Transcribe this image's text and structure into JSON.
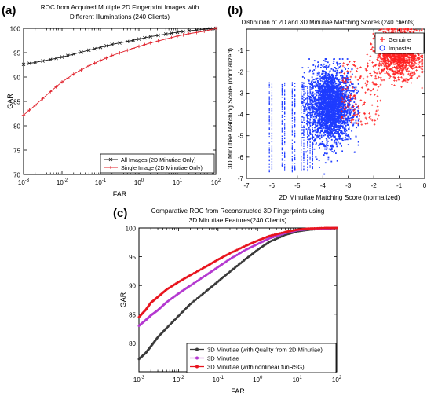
{
  "chart_data": [
    {
      "panel_label": "(a)",
      "type": "line",
      "title": [
        "ROC from Acquired Multiple 2D Fingerprint Images with",
        "Different Illuminations (240 Clients)"
      ],
      "xlabel": "FAR",
      "ylabel": "GAR",
      "xscale": "log",
      "xlim": [
        0.001,
        100
      ],
      "ylim": [
        70,
        100
      ],
      "xticks": [
        "10^-3",
        "10^-2",
        "10^-1",
        "10^0",
        "10^1",
        "10^2"
      ],
      "yticks": [
        "70",
        "75",
        "80",
        "85",
        "90",
        "95",
        "100"
      ],
      "grid": false,
      "legend_position": "bottom-right",
      "series": [
        {
          "name": "All Images (2D Minutiae Only)",
          "color": "#1a1a1a",
          "marker": "x",
          "x": [
            0.001,
            0.002,
            0.005,
            0.01,
            0.02,
            0.05,
            0.1,
            0.2,
            0.5,
            1,
            2,
            5,
            10,
            20,
            50,
            100
          ],
          "y": [
            92.6,
            93.0,
            93.6,
            94.1,
            94.7,
            95.5,
            96.1,
            96.7,
            97.3,
            97.8,
            98.3,
            98.8,
            99.2,
            99.5,
            99.8,
            100
          ]
        },
        {
          "name": "Single Image (2D Minutiae Only)",
          "color": "#e0202a",
          "marker": "+",
          "x": [
            0.001,
            0.002,
            0.005,
            0.01,
            0.02,
            0.05,
            0.1,
            0.2,
            0.5,
            1,
            2,
            5,
            10,
            20,
            50,
            100
          ],
          "y": [
            82.2,
            84.2,
            87.0,
            89.0,
            90.6,
            92.3,
            93.4,
            94.4,
            95.5,
            96.3,
            97.0,
            97.8,
            98.4,
            98.9,
            99.4,
            100
          ]
        }
      ]
    },
    {
      "panel_label": "(b)",
      "type": "scatter",
      "title": [
        "Distibution of 2D and 3D Minutiae Matching Scores (240 clients)"
      ],
      "xlabel": "2D Minutiae Matching Score (normalized)",
      "ylabel": "3D Minutiae Matching Score (normalized)",
      "xlim": [
        -7,
        0
      ],
      "ylim": [
        -7,
        0
      ],
      "xticks": [
        "-7",
        "-6",
        "-5",
        "-4",
        "-3",
        "-2",
        "-1",
        "0"
      ],
      "yticks": [
        "-7",
        "-6",
        "-5",
        "-4",
        "-3",
        "-2",
        "-1"
      ],
      "legend_position": "top-right",
      "series": [
        {
          "name": "Genuine",
          "color": "#ff2020",
          "marker": "+",
          "x_center": -1.0,
          "y_center": -1.1,
          "x_range": [
            -3.3,
            -0.1
          ],
          "y_range": [
            -4.6,
            0.0
          ]
        },
        {
          "name": "Imposter",
          "color": "#1e3cff",
          "marker": "o",
          "x_center": -3.7,
          "y_center": -3.6,
          "x_range": [
            -6.1,
            -2.6
          ],
          "y_range": [
            -6.8,
            -1.4
          ]
        }
      ]
    },
    {
      "panel_label": "(c)",
      "type": "line",
      "title": [
        "Comparative ROC from Reconstructed 3D Fingerprints using",
        "3D Minutiae Features(240 Clients)"
      ],
      "xlabel": "FAR",
      "ylabel": "GAR",
      "xscale": "log",
      "xlim": [
        0.001,
        100
      ],
      "ylim": [
        75,
        100
      ],
      "xticks": [
        "10^-3",
        "10^-2",
        "10^-1",
        "10^0",
        "10^1",
        "10^2"
      ],
      "yticks": [
        "80",
        "85",
        "90",
        "95",
        "100"
      ],
      "grid": false,
      "legend_position": "bottom-right",
      "series": [
        {
          "name": "3D Minutiae (with Quality from 2D Minutiae)",
          "color": "#3a3a3a",
          "marker": "dot",
          "x": [
            0.001,
            0.0015,
            0.002,
            0.003,
            0.005,
            0.01,
            0.02,
            0.05,
            0.1,
            0.2,
            0.5,
            1,
            2,
            5,
            10,
            20,
            50,
            100
          ],
          "y": [
            77.2,
            78.3,
            79.4,
            81.0,
            82.6,
            84.7,
            86.8,
            89.0,
            90.7,
            92.4,
            94.6,
            96.2,
            97.6,
            98.8,
            99.4,
            99.7,
            99.9,
            100
          ]
        },
        {
          "name": "3D Minutiae",
          "color": "#b438d0",
          "marker": "dot",
          "x": [
            0.001,
            0.0015,
            0.002,
            0.003,
            0.005,
            0.01,
            0.02,
            0.05,
            0.1,
            0.2,
            0.5,
            1,
            2,
            5,
            10,
            20,
            50,
            100
          ],
          "y": [
            83.0,
            84.0,
            84.8,
            85.7,
            87.1,
            88.6,
            90.0,
            91.8,
            93.2,
            94.6,
            96.2,
            97.2,
            98.2,
            99.1,
            99.6,
            99.8,
            99.9,
            100
          ]
        },
        {
          "name": "3D Minutiae (with nonlinear funRSG)",
          "color": "#e8141e",
          "marker": "dot",
          "x": [
            0.001,
            0.0015,
            0.002,
            0.003,
            0.005,
            0.01,
            0.02,
            0.05,
            0.1,
            0.2,
            0.5,
            1,
            2,
            5,
            10,
            20,
            50,
            100
          ],
          "y": [
            84.5,
            85.8,
            87.0,
            88.0,
            89.3,
            90.6,
            91.8,
            93.3,
            94.5,
            95.6,
            96.9,
            97.8,
            98.6,
            99.3,
            99.7,
            99.9,
            100,
            100
          ]
        }
      ]
    }
  ]
}
